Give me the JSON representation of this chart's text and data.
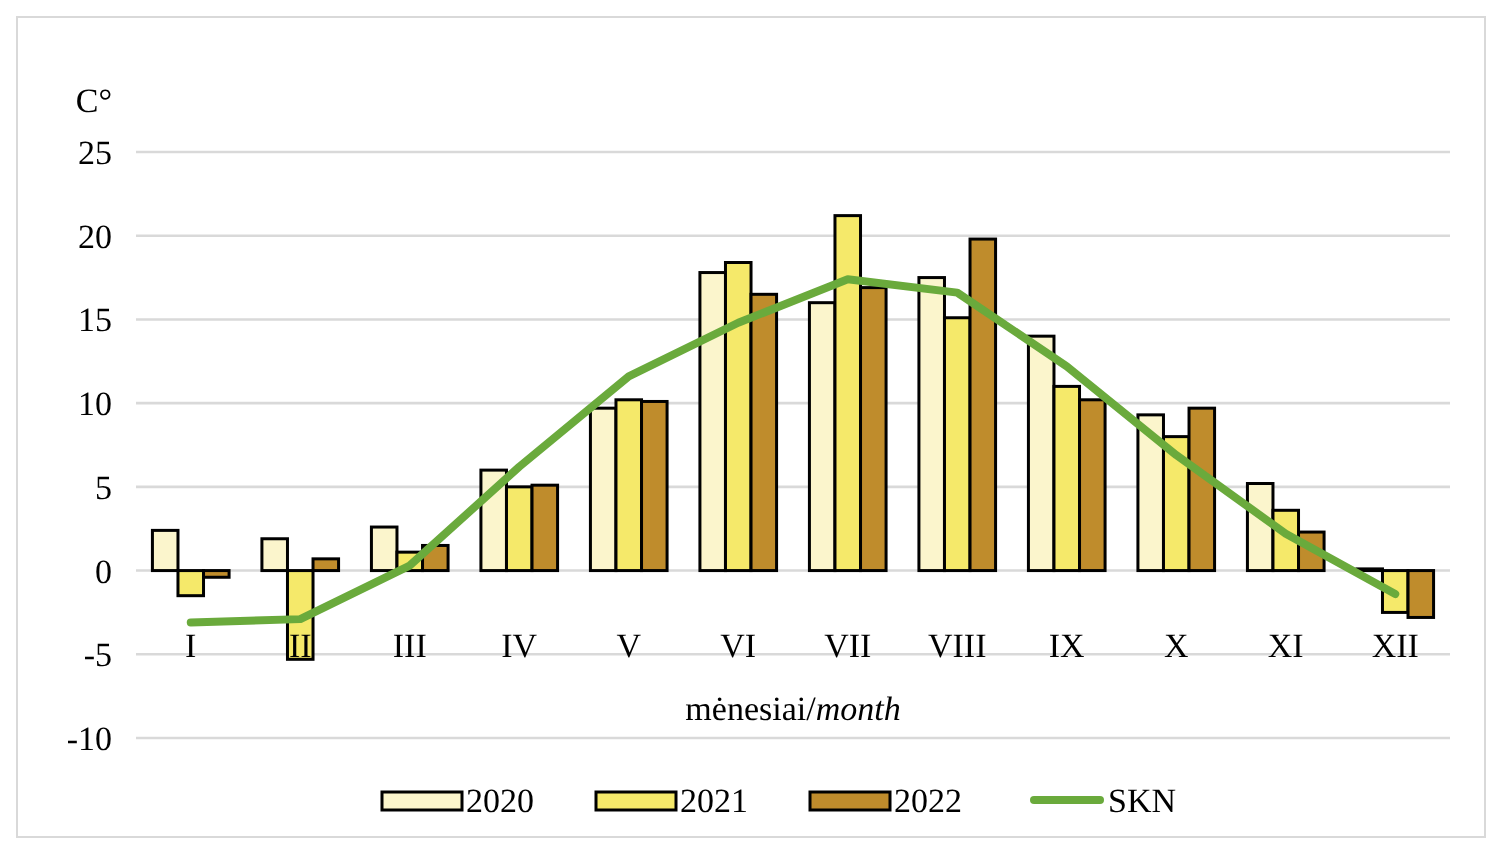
{
  "chart_data": {
    "type": "bar",
    "ylabel": "C°",
    "xlabel": "mėnesiai/month",
    "categories": [
      "I",
      "II",
      "III",
      "IV",
      "V",
      "VI",
      "VII",
      "VIII",
      "IX",
      "X",
      "XI",
      "XII"
    ],
    "series": [
      {
        "name": "2020",
        "color": "#fbf5cc",
        "values": [
          2.4,
          1.9,
          2.6,
          6.0,
          9.7,
          17.8,
          16.0,
          17.5,
          14.0,
          9.3,
          5.2,
          0.1
        ]
      },
      {
        "name": "2021",
        "color": "#f5e96a",
        "values": [
          -1.5,
          -5.3,
          1.1,
          5.0,
          10.2,
          18.4,
          21.2,
          15.1,
          11.0,
          8.0,
          3.6,
          -2.5
        ]
      },
      {
        "name": "2022",
        "color": "#bf8c2c",
        "values": [
          -0.4,
          0.7,
          1.5,
          5.1,
          10.1,
          16.5,
          16.9,
          19.8,
          10.2,
          9.7,
          2.3,
          -2.8
        ]
      },
      {
        "name": "SKN",
        "type": "line",
        "color": "#6aaa3c",
        "values": [
          -3.1,
          -2.9,
          0.3,
          6.2,
          11.6,
          14.8,
          17.4,
          16.6,
          12.2,
          6.9,
          2.2,
          -1.4
        ]
      }
    ],
    "ylim": [
      -10,
      25
    ],
    "yticks": [
      -10,
      -5,
      0,
      5,
      10,
      15,
      20,
      25
    ],
    "grid": "y",
    "legend": "bottom",
    "marker": "none"
  }
}
